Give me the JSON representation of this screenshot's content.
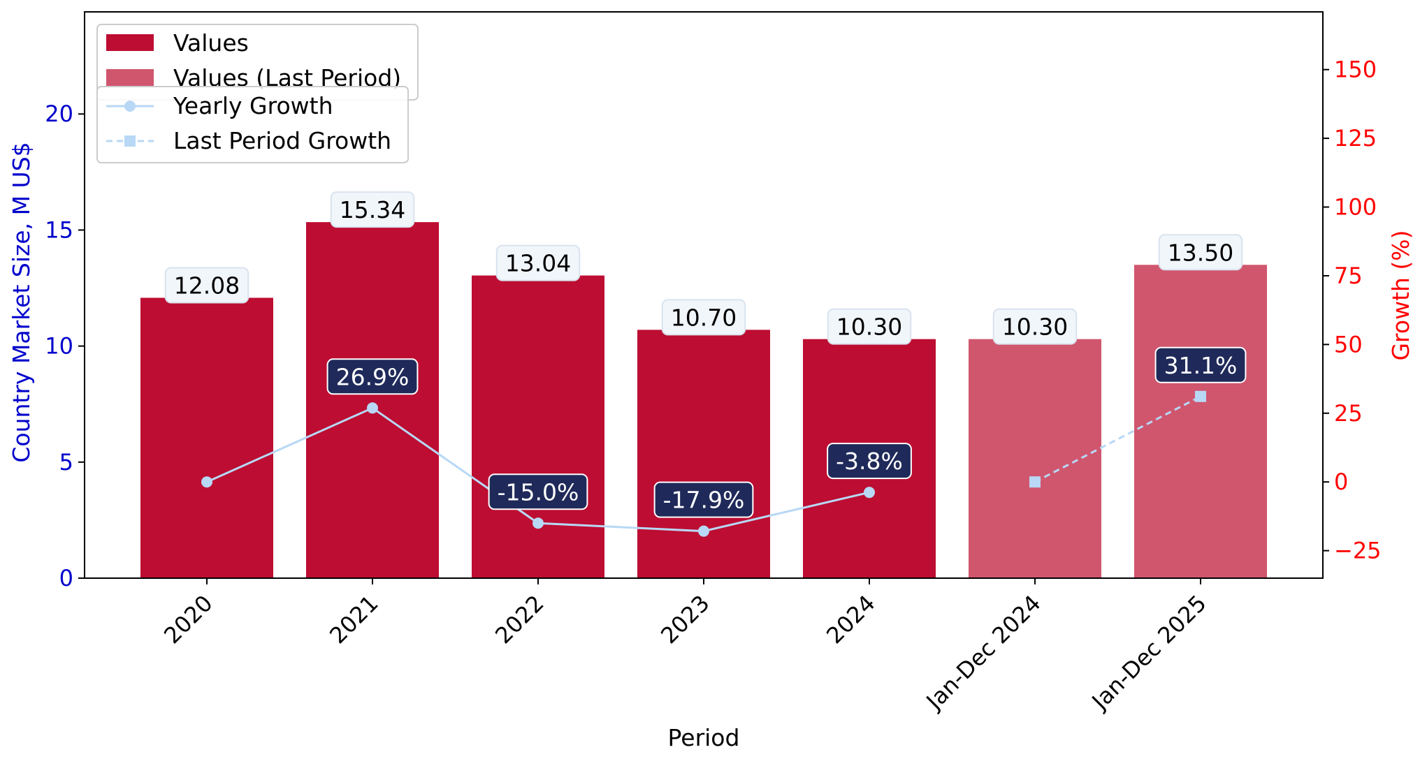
{
  "chart_data": {
    "type": "bar",
    "categories": [
      "2020",
      "2021",
      "2022",
      "2023",
      "2024",
      "Jan-Dec 2024",
      "Jan-Dec 2025"
    ],
    "values": [
      12.08,
      15.34,
      13.04,
      10.7,
      10.3,
      10.3,
      13.5
    ],
    "value_labels": [
      "12.08",
      "15.34",
      "13.04",
      "10.70",
      "10.30",
      "10.30",
      "13.50"
    ],
    "bar_kinds": [
      "values",
      "values",
      "values",
      "values",
      "values",
      "last_period",
      "last_period"
    ],
    "xlabel": "Period",
    "ylabel": "Country Market Size, M US$",
    "y2label": "Growth (%)",
    "ylim": [
      0,
      24.4
    ],
    "y2lim": [
      -35,
      171
    ],
    "yticks": [
      "0",
      "5",
      "10",
      "15",
      "20"
    ],
    "y2ticks": [
      "−25",
      "0",
      "25",
      "50",
      "75",
      "100",
      "125",
      "150"
    ],
    "y2tick_values": [
      -25,
      0,
      25,
      50,
      75,
      100,
      125,
      150
    ],
    "ytick_values": [
      0,
      5,
      10,
      15,
      20
    ],
    "series": [
      {
        "name": "Values",
        "values": [
          12.08,
          15.34,
          13.04,
          10.7,
          10.3,
          null,
          null
        ],
        "color": "#bd0d32"
      },
      {
        "name": "Values (Last Period)",
        "values": [
          null,
          null,
          null,
          null,
          null,
          10.3,
          13.5
        ],
        "color": "#d0566e"
      },
      {
        "name": "Yearly Growth",
        "axis": "right",
        "values": [
          0,
          26.9,
          -15.0,
          -17.9,
          -3.8,
          null,
          null
        ],
        "labels": [
          null,
          "26.9%",
          "-15.0%",
          "-17.9%",
          "-3.8%",
          null,
          null
        ],
        "color": "#b8d8f5"
      },
      {
        "name": "Last Period Growth",
        "axis": "right",
        "values": [
          null,
          null,
          null,
          null,
          null,
          0,
          31.1
        ],
        "labels": [
          null,
          null,
          null,
          null,
          null,
          null,
          "31.1%"
        ],
        "color": "#b8d8f5",
        "dashed": true
      }
    ],
    "legend_upper": [
      "Values",
      "Values (Last Period)"
    ],
    "legend_lower": [
      "Yearly Growth",
      "Last Period Growth"
    ],
    "legend_position": "top-left",
    "colors": {
      "bar": "#bd0d32",
      "bar_last": "#d0566e",
      "line": "#b8d8f5",
      "left_axis": "#0000cc",
      "right_axis": "#ff0000",
      "growth_box": "#1f2a5a",
      "value_box": "#f1f6fb"
    },
    "grid": false
  }
}
